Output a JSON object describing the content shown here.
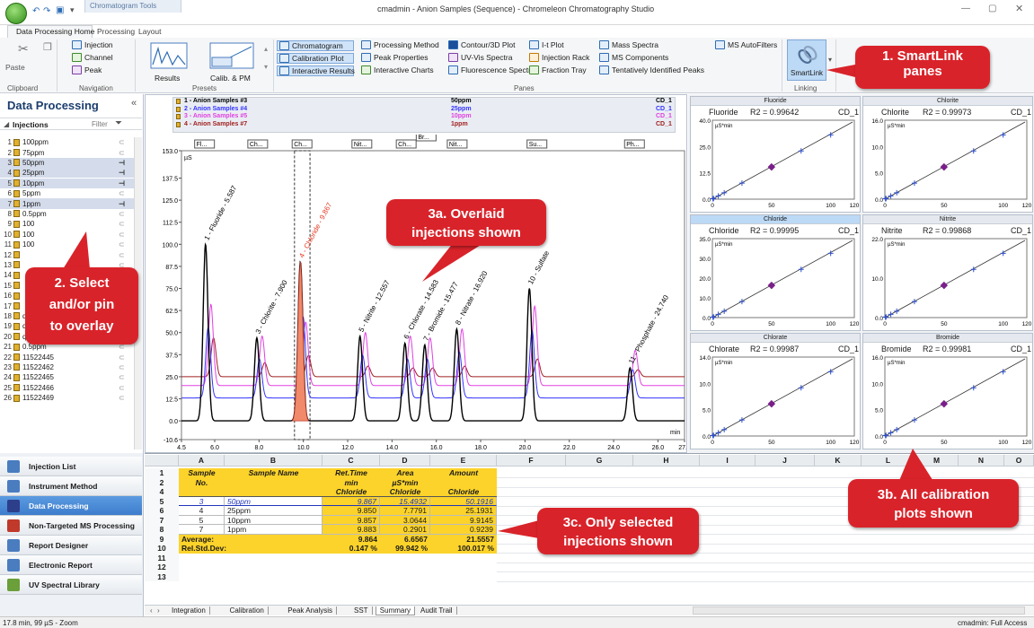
{
  "titlebar": {
    "context_tab": "Chromatogram Tools",
    "title": "cmadmin - Anion Samples (Sequence) - Chromeleon Chromatography Studio"
  },
  "menu_tabs": [
    "Data Processing Home",
    "Processing",
    "Layout"
  ],
  "ribbon": {
    "clipboard": {
      "paste": "Paste",
      "label": "Clipboard"
    },
    "navigation": {
      "items": [
        "Injection",
        "Channel",
        "Peak"
      ],
      "label": "Navigation"
    },
    "presets": {
      "results": "Results",
      "calib": "Calib. & PM",
      "label": "Presets"
    },
    "panes": {
      "label": "Panes",
      "col1": [
        "Chromatogram",
        "Calibration Plot",
        "Interactive Results"
      ],
      "col2": [
        "Processing Method",
        "Peak Properties",
        "Interactive Charts"
      ],
      "col3": [
        "Contour/3D Plot",
        "UV-Vis Spectra",
        "Fluorescence Spectra"
      ],
      "col4": [
        "I-t Plot",
        "Injection Rack",
        "Fraction Tray"
      ],
      "col5": [
        "Mass Spectra",
        "MS Components",
        "Tentatively Identified Peaks"
      ],
      "col6": [
        "MS AutoFilters"
      ]
    },
    "linking": {
      "smartlink": "SmartLink",
      "label": "Linking"
    }
  },
  "left_panel": {
    "title": "Data Processing",
    "injections_label": "Injections",
    "filter_label": "Filter",
    "injections": [
      {
        "num": "1",
        "name": "100ppm",
        "pinned": false
      },
      {
        "num": "2",
        "name": "75ppm",
        "pinned": false
      },
      {
        "num": "3",
        "name": "50ppm",
        "pinned": true
      },
      {
        "num": "4",
        "name": "25ppm",
        "pinned": true
      },
      {
        "num": "5",
        "name": "10ppm",
        "pinned": true
      },
      {
        "num": "6",
        "name": "5ppm",
        "pinned": false
      },
      {
        "num": "7",
        "name": "1ppm",
        "pinned": true
      },
      {
        "num": "8",
        "name": "0.5ppm",
        "pinned": false
      },
      {
        "num": "9",
        "name": "100",
        "pinned": false
      },
      {
        "num": "10",
        "name": "100",
        "pinned": false
      },
      {
        "num": "11",
        "name": "100",
        "pinned": false
      },
      {
        "num": "12",
        "name": "",
        "pinned": false
      },
      {
        "num": "13",
        "name": "",
        "pinned": false
      },
      {
        "num": "14",
        "name": "",
        "pinned": false
      },
      {
        "num": "15",
        "name": "",
        "pinned": false
      },
      {
        "num": "16",
        "name": "",
        "pinned": false
      },
      {
        "num": "17",
        "name": "",
        "pinned": false
      },
      {
        "num": "18",
        "name": "qc",
        "pinned": false
      },
      {
        "num": "19",
        "name": "qc",
        "pinned": false
      },
      {
        "num": "20",
        "name": "qc",
        "pinned": false
      },
      {
        "num": "21",
        "name": "0.5ppm",
        "pinned": false
      },
      {
        "num": "22",
        "name": "11522445",
        "pinned": false
      },
      {
        "num": "23",
        "name": "11522462",
        "pinned": false
      },
      {
        "num": "24",
        "name": "11522465",
        "pinned": false
      },
      {
        "num": "25",
        "name": "11522466",
        "pinned": false
      },
      {
        "num": "26",
        "name": "11522469",
        "pinned": false
      }
    ]
  },
  "nav_items": [
    "Injection List",
    "Instrument Method",
    "Data Processing",
    "Non-Targeted MS Processing",
    "Report Designer",
    "Electronic Report",
    "UV Spectral Library"
  ],
  "chromatogram": {
    "legend": [
      {
        "name": "1 - Anion Samples #3",
        "conc": "50ppm",
        "ch": "CD_1",
        "color": "#000000"
      },
      {
        "name": "2 - Anion Samples #4",
        "conc": "25ppm",
        "ch": "CD_1",
        "color": "#3333ff"
      },
      {
        "name": "3 - Anion Samples #5",
        "conc": "10ppm",
        "ch": "CD_1",
        "color": "#e040e0"
      },
      {
        "name": "4 - Anion Samples #7",
        "conc": "1ppm",
        "ch": "CD_1",
        "color": "#a02020"
      }
    ],
    "unit": "µS",
    "x_unit": "min",
    "y_ticks": [
      "153.0",
      "137.5",
      "125.0",
      "112.5",
      "100.0",
      "87.5",
      "75.0",
      "62.5",
      "50.0",
      "37.5",
      "25.0",
      "12.5",
      "0.0",
      "-10.6"
    ],
    "x_ticks": [
      "4.5",
      "6.0",
      "8.0",
      "10.0",
      "12.0",
      "14.0",
      "16.0",
      "18.0",
      "20.0",
      "22.0",
      "24.0",
      "26.0",
      "27.2"
    ],
    "peak_tags": [
      "Fl...",
      "Ch...",
      "Ch...",
      "Nit...",
      "Ch...",
      "Br...",
      "Nit...",
      "Su...",
      "Ph..."
    ],
    "peak_labels": [
      {
        "text": "1 - Fluoride - 5.587",
        "color": "#000000"
      },
      {
        "text": "3 - Chlorite - 7.900",
        "color": "#000000"
      },
      {
        "text": "4 - Chloride - 9.867",
        "color": "#e53a24"
      },
      {
        "text": "5 - Nitrite - 12.557",
        "color": "#000000"
      },
      {
        "text": "6 - Chlorate - 14.583",
        "color": "#000000"
      },
      {
        "text": "7 - Bromide - 15.477",
        "color": "#000000"
      },
      {
        "text": "8 - Nitrate - 16.920",
        "color": "#000000"
      },
      {
        "text": "10 - Sulfate",
        "color": "#000000"
      },
      {
        "text": "11 - Phosphate - 24.740",
        "color": "#000000"
      }
    ]
  },
  "chart_data": {
    "type": "line",
    "xlabel": "min",
    "ylabel": "µS",
    "xlim": [
      4.5,
      27.2
    ],
    "ylim": [
      -10.6,
      153.0
    ],
    "peaks": [
      {
        "rt": 5.587,
        "name": "Fluoride",
        "heights": [
          100,
          40,
          46,
          22
        ]
      },
      {
        "rt": 7.9,
        "name": "Chlorite",
        "heights": [
          47,
          22,
          28,
          8
        ]
      },
      {
        "rt": 9.867,
        "name": "Chloride",
        "heights": [
          90,
          46,
          36,
          12
        ]
      },
      {
        "rt": 12.557,
        "name": "Nitrite",
        "heights": [
          48,
          24,
          30,
          6
        ]
      },
      {
        "rt": 14.583,
        "name": "Chlorate",
        "heights": [
          44,
          22,
          28,
          5
        ]
      },
      {
        "rt": 15.477,
        "name": "Bromide",
        "heights": [
          43,
          22,
          27,
          5
        ]
      },
      {
        "rt": 16.92,
        "name": "Nitrate",
        "heights": [
          52,
          26,
          32,
          6
        ]
      },
      {
        "rt": 20.2,
        "name": "Sulfate",
        "heights": [
          75,
          38,
          45,
          10
        ]
      },
      {
        "rt": 24.74,
        "name": "Phosphate",
        "heights": [
          30,
          16,
          20,
          4
        ]
      }
    ],
    "series_offsets": [
      0,
      13,
      20,
      25
    ]
  },
  "calibration_plots": [
    {
      "header": "Fluoride",
      "name": "Fluoride",
      "r2": "R2 = 0.99642",
      "ch": "CD_1",
      "unit": "µS*min",
      "y_ticks": [
        "40.0",
        "25.0",
        "12.5",
        "0.0"
      ],
      "x_ticks": [
        "0",
        "50",
        "100",
        "120"
      ]
    },
    {
      "header": "Chlorite",
      "name": "Chlorite",
      "r2": "R2 = 0.99973",
      "ch": "CD_1",
      "unit": "µS*min",
      "y_ticks": [
        "16.0",
        "10.0",
        "5.0",
        "0.0"
      ],
      "x_ticks": [
        "0",
        "50",
        "100",
        "120"
      ]
    },
    {
      "header": "Chloride",
      "name": "Chloride",
      "r2": "R2 = 0.99995",
      "ch": "CD_1",
      "unit": "µS*min",
      "y_ticks": [
        "35.0",
        "30.0",
        "20.0",
        "10.0",
        "0.0"
      ],
      "x_ticks": [
        "0",
        "50",
        "100",
        "120"
      ]
    },
    {
      "header": "Nitrite",
      "name": "Nitrite",
      "r2": "R2 = 0.99868",
      "ch": "CD_1",
      "unit": "µS*min",
      "y_ticks": [
        "22.0",
        "10.0",
        "0.0"
      ],
      "x_ticks": [
        "0",
        "50",
        "100",
        "120"
      ]
    },
    {
      "header": "Chlorate",
      "name": "Chlorate",
      "r2": "R2 = 0.99987",
      "ch": "CD_1",
      "unit": "µS*min",
      "y_ticks": [
        "14.0",
        "10.0",
        "5.0",
        "0.0"
      ],
      "x_ticks": [
        "0",
        "50",
        "100",
        "120"
      ]
    },
    {
      "header": "Bromide",
      "name": "Bromide",
      "r2": "R2 = 0.99981",
      "ch": "CD_1",
      "unit": "µS*min",
      "y_ticks": [
        "16.0",
        "10.0",
        "5.0",
        "0.0"
      ],
      "x_ticks": [
        "0",
        "50",
        "100",
        "120"
      ]
    }
  ],
  "spreadsheet": {
    "columns": [
      "A",
      "B",
      "C",
      "D",
      "E",
      "F",
      "G",
      "H",
      "I",
      "J",
      "K",
      "L",
      "M",
      "N",
      "O",
      "P"
    ],
    "header_rows": [
      {
        "a": "Sample",
        "b": "Sample Name",
        "c": "Ret.Time",
        "d": "Area",
        "e": "Amount"
      },
      {
        "a": "No.",
        "b": "",
        "c": "min",
        "d": "µS*min",
        "e": ""
      },
      {
        "a": "",
        "b": "",
        "c": "Chloride",
        "d": "Chloride",
        "e": "Chloride"
      }
    ],
    "rows": [
      {
        "num": "5",
        "a": "3",
        "b": "50ppm",
        "c": "9.867",
        "d": "15.4932",
        "e": "50.1916"
      },
      {
        "num": "6",
        "a": "4",
        "b": "25ppm",
        "c": "9.850",
        "d": "7.7791",
        "e": "25.1931"
      },
      {
        "num": "7",
        "a": "5",
        "b": "10ppm",
        "c": "9.857",
        "d": "3.0644",
        "e": "9.9145"
      },
      {
        "num": "8",
        "a": "7",
        "b": "1ppm",
        "c": "9.883",
        "d": "0.2901",
        "e": "0.9239"
      }
    ],
    "summary": [
      {
        "num": "9",
        "label": "Average:",
        "c": "9.864",
        "d": "6.6567",
        "e": "21.5557"
      },
      {
        "num": "10",
        "label": "Rel.Std.Dev:",
        "c": "0.147 %",
        "d": "99.942 %",
        "e": "100.017 %"
      }
    ],
    "row_numbers": [
      "1",
      "2",
      "4",
      "5",
      "6",
      "7",
      "8",
      "9",
      "10",
      "11",
      "12",
      "13"
    ],
    "tabs": [
      "Integration",
      "Calibration",
      "Peak Analysis",
      "SST",
      "Summary",
      "Audit Trail"
    ]
  },
  "callouts": {
    "c1": {
      "line1": "1. SmartLink",
      "line2": "panes"
    },
    "c2": {
      "line1": "2. Select",
      "line2": "and/or pin",
      "line3": "to overlay"
    },
    "c3a": {
      "line1": "3a. Overlaid",
      "line2": "injections shown"
    },
    "c3b": {
      "line1": "3b. All calibration",
      "line2": "plots shown"
    },
    "c3c": {
      "line1": "3c. Only selected",
      "line2": "injections shown"
    }
  },
  "status": {
    "left": "17.8 min, 99 µS - Zoom",
    "right": "cmadmin: Full Access"
  },
  "colors": {
    "callout": "#d9232a",
    "highlight_yellow": "#fcd32a",
    "selected_blue": "#5b9be0"
  }
}
